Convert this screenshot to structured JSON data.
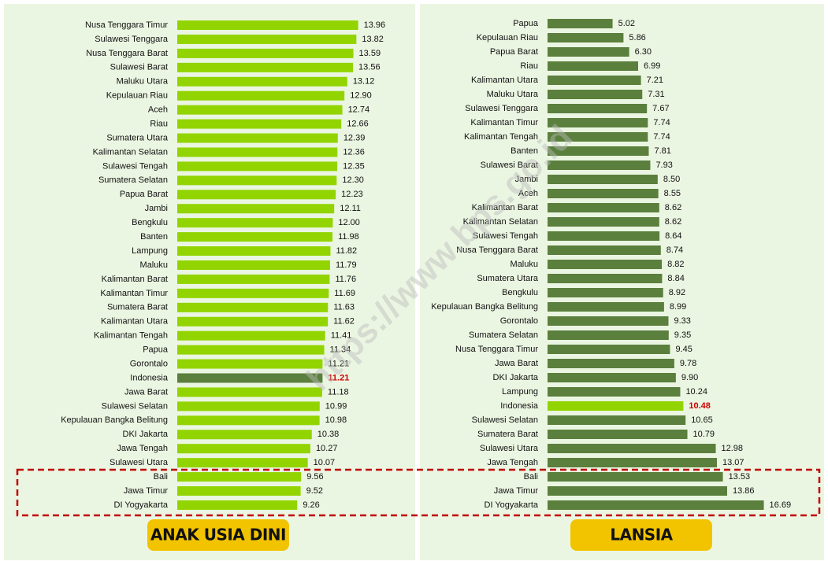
{
  "chart_data": [
    {
      "type": "bar",
      "orientation": "horizontal",
      "title": "ANAK USIA DINI",
      "categories": [
        "Nusa Tenggara Timur",
        "Sulawesi Tenggara",
        "Nusa Tenggara Barat",
        "Sulawesi Barat",
        "Maluku Utara",
        "Kepulauan Riau",
        "Aceh",
        "Riau",
        "Sumatera Utara",
        "Kalimantan Selatan",
        "Sulawesi Tengah",
        "Sumatera Selatan",
        "Papua Barat",
        "Jambi",
        "Bengkulu",
        "Banten",
        "Lampung",
        "Maluku",
        "Kalimantan Barat",
        "Kalimantan Timur",
        "Sumatera Barat",
        "Kalimantan Utara",
        "Kalimantan Tengah",
        "Papua",
        "Gorontalo",
        "Indonesia",
        "Jawa Barat",
        "Sulawesi Selatan",
        "Kepulauan Bangka Belitung",
        "DKI Jakarta",
        "Jawa Tengah",
        "Sulawesi Utara",
        "Bali",
        "Jawa Timur",
        "DI Yogyakarta"
      ],
      "values": [
        13.96,
        13.82,
        13.59,
        13.56,
        13.12,
        12.9,
        12.74,
        12.66,
        12.39,
        12.36,
        12.35,
        12.3,
        12.23,
        12.11,
        12,
        11.98,
        11.82,
        11.79,
        11.76,
        11.69,
        11.63,
        11.62,
        11.41,
        11.34,
        11.21,
        11.21,
        11.18,
        10.99,
        10.98,
        10.38,
        10.27,
        10.07,
        9.56,
        9.52,
        9.26
      ],
      "value_labels": [
        "13.96",
        "13.82",
        "13.59",
        "13.56",
        "13.12",
        "12.90",
        "12.74",
        "12.66",
        "12.39",
        "12.36",
        "12.35",
        "12.30",
        "12.23",
        "12.11",
        "12.00",
        "11.98",
        "11.82",
        "11.79",
        "11.76",
        "11.69",
        "11.63",
        "11.62",
        "11.41",
        "11.34",
        "11.21",
        "11.21",
        "11.18",
        "10.99",
        "10.98",
        "10.38",
        "10.27",
        "10.07",
        "9.56",
        "9.52",
        "9.26"
      ],
      "color": "#92d400",
      "highlight_category": "Indonesia",
      "highlight_color": "#5b7f3d"
    },
    {
      "type": "bar",
      "orientation": "horizontal",
      "title": "LANSIA",
      "categories": [
        "Papua",
        "Kepulauan Riau",
        "Papua Barat",
        "Riau",
        "Kalimantan Utara",
        "Maluku Utara",
        "Sulawesi Tenggara",
        "Kalimantan Timur",
        "Kalimantan Tengah",
        "Banten",
        "Sulawesi Barat",
        "Jambi",
        "Aceh",
        "Kalimantan Barat",
        "Kalimantan Selatan",
        "Sulawesi Tengah",
        "Nusa Tenggara Barat",
        "Maluku",
        "Sumatera Utara",
        "Bengkulu",
        "Kepulauan Bangka Belitung",
        "Gorontalo",
        "Sumatera Selatan",
        "Nusa Tenggara Timur",
        "Jawa Barat",
        "DKI Jakarta",
        "Lampung",
        "Indonesia",
        "Sulawesi Selatan",
        "Sumatera Barat",
        "Sulawesi Utara",
        "Jawa Tengah",
        "Bali",
        "Jawa Timur",
        "DI Yogyakarta"
      ],
      "values": [
        5.02,
        5.86,
        6.3,
        6.99,
        7.21,
        7.31,
        7.67,
        7.74,
        7.74,
        7.81,
        7.93,
        8.5,
        8.55,
        8.62,
        8.62,
        8.64,
        8.74,
        8.82,
        8.84,
        8.92,
        8.99,
        9.33,
        9.35,
        9.45,
        9.78,
        9.9,
        10.24,
        10.48,
        10.65,
        10.79,
        12.98,
        13.07,
        13.53,
        13.86,
        16.69
      ],
      "value_labels": [
        "5.02",
        "5.86",
        "6.30",
        "6.99",
        "7.21",
        "7.31",
        "7.67",
        "7.74",
        "7.74",
        "7.81",
        "7.93",
        "8.50",
        "8.55",
        "8.62",
        "8.62",
        "8.64",
        "8.74",
        "8.82",
        "8.84",
        "8.92",
        "8.99",
        "9.33",
        "9.35",
        "9.45",
        "9.78",
        "9.90",
        "10.24",
        "10.48",
        "10.65",
        "10.79",
        "12.98",
        "13.07",
        "13.53",
        "13.86",
        "16.69"
      ],
      "color": "#5b7f3d",
      "highlight_category": "Indonesia",
      "highlight_color": "#92d400"
    }
  ],
  "watermark": "https://www.bps.go.id"
}
